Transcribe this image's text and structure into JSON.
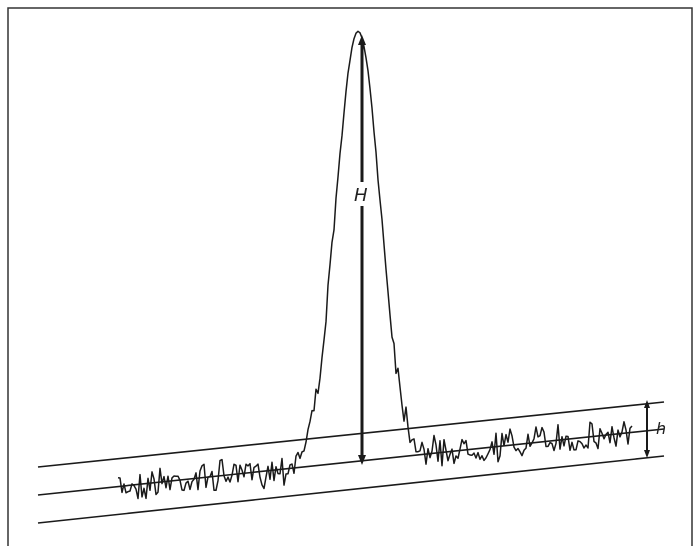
{
  "diagram": {
    "labels": {
      "peak_height": "H",
      "noise_height": "h"
    },
    "colors": {
      "ink": "#1a1a1a",
      "frame": "#333333",
      "background": "#ffffff"
    }
  }
}
